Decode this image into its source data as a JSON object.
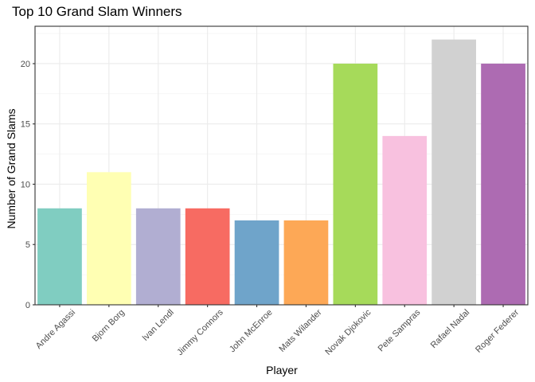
{
  "chart_data": {
    "type": "bar",
    "title": "Top 10 Grand Slam Winners",
    "xlabel": "Player",
    "ylabel": "Number of Grand Slams",
    "categories": [
      "Andre Agassi",
      "Bjorn Borg",
      "Ivan Lendl",
      "Jimmy Connors",
      "John McEnroe",
      "Mats Wilander",
      "Novak Djokovic",
      "Pete Sampras",
      "Rafael Nadal",
      "Roger Federer"
    ],
    "values": [
      8,
      11,
      8,
      8,
      7,
      7,
      20,
      14,
      22,
      20
    ],
    "colors": [
      "#80CDC1",
      "#FFFFB3",
      "#B1AED2",
      "#F76B62",
      "#6FA4CA",
      "#FDA856",
      "#A6DA5A",
      "#F8C1DF",
      "#D1D1D1",
      "#AD6BB2"
    ],
    "yticks": [
      0,
      5,
      10,
      15,
      20
    ],
    "ylim": [
      0,
      23.1
    ],
    "grid": true,
    "legend": "none"
  }
}
